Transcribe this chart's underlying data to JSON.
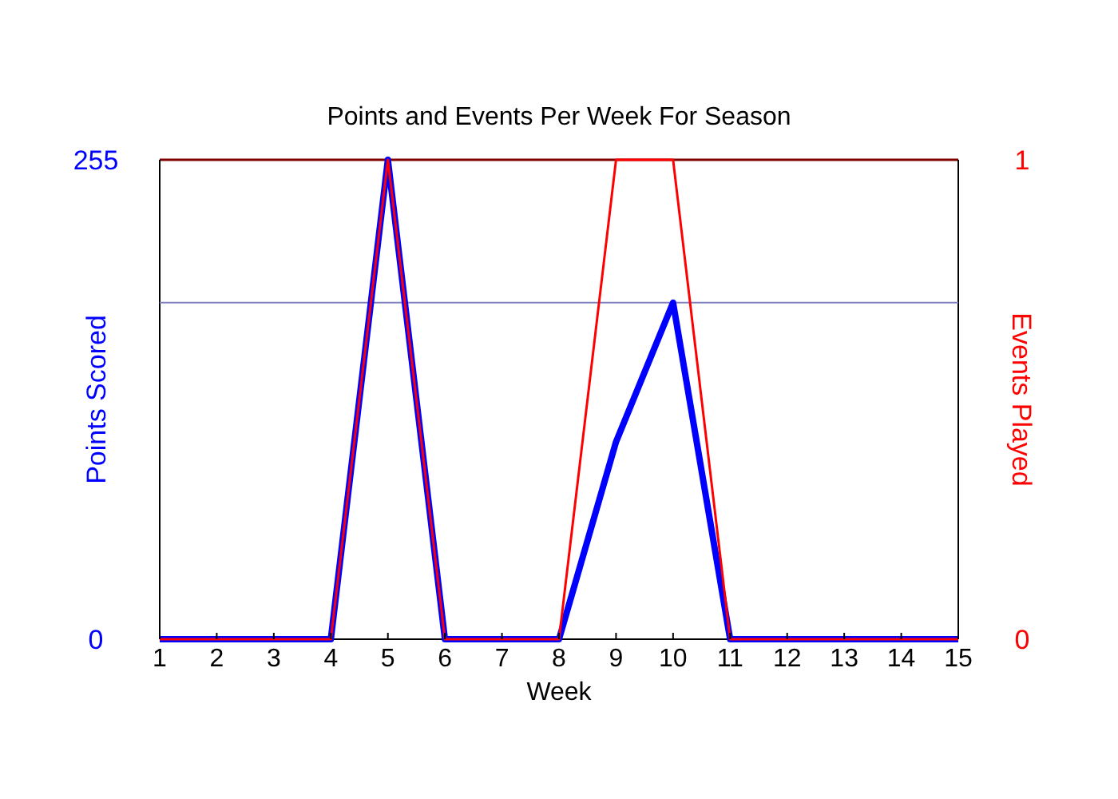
{
  "chart_data": {
    "type": "line",
    "title": "Points and Events Per Week For Season",
    "xlabel": "Week",
    "ylabel": "Points Scored",
    "y2label": "Events Played",
    "x": [
      1,
      2,
      3,
      4,
      5,
      6,
      7,
      8,
      9,
      10,
      11,
      12,
      13,
      14,
      15
    ],
    "xlim": [
      1,
      15
    ],
    "xticks": [
      1,
      2,
      3,
      4,
      5,
      6,
      7,
      8,
      9,
      10,
      11,
      12,
      13,
      14,
      15
    ],
    "ylim": [
      0,
      255
    ],
    "yticks": [
      0,
      255
    ],
    "y2lim": [
      0,
      1
    ],
    "y2ticks": [
      0,
      1
    ],
    "series": [
      {
        "color": "#0000ff",
        "values": [
          0,
          0,
          0,
          0,
          255,
          0,
          0,
          0,
          105,
          179,
          0,
          0,
          0,
          0,
          0
        ]
      },
      {
        "color": "#ff0000",
        "axis": "y2",
        "values": [
          0,
          0,
          0,
          0,
          1,
          0,
          0,
          0,
          1,
          1,
          0,
          0,
          0,
          0,
          0
        ]
      }
    ],
    "ref_lines": [
      {
        "axis": "y",
        "value": 179,
        "color": "#8080c0"
      }
    ],
    "grid": false,
    "marker": "none",
    "line_style": "solid"
  }
}
